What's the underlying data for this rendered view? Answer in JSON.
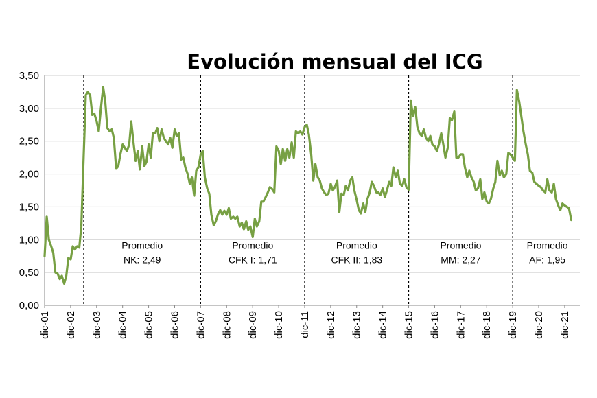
{
  "chart_data": {
    "type": "line",
    "title": "Evolución mensual del ICG",
    "xlabel": "",
    "ylabel": "",
    "ylim": [
      0,
      3.5
    ],
    "y_ticks": [
      "0,00",
      "0,50",
      "1,00",
      "1,50",
      "2,00",
      "2,50",
      "3,00",
      "3,50"
    ],
    "y_tick_values": [
      0,
      0.5,
      1,
      1.5,
      2,
      2.5,
      3,
      3.5
    ],
    "x_ticks": [
      "dic-01",
      "dic-02",
      "dic-03",
      "dic-04",
      "dic-05",
      "dic-06",
      "dic-07",
      "dic-08",
      "dic-09",
      "dic-10",
      "dic-11",
      "dic-12",
      "dic-13",
      "dic-14",
      "dic-15",
      "dic-16",
      "dic-17",
      "dic-18",
      "dic-19",
      "dic-20",
      "dic-21"
    ],
    "x_tick_values": [
      2001.917,
      2002.917,
      2003.917,
      2004.917,
      2005.917,
      2006.917,
      2007.917,
      2008.917,
      2009.917,
      2010.917,
      2011.917,
      2012.917,
      2013.917,
      2014.917,
      2015.917,
      2016.917,
      2017.917,
      2018.917,
      2019.917,
      2020.917,
      2021.917
    ],
    "xlim": [
      2001.917,
      2022.5
    ],
    "grid": true,
    "color": "#77a043",
    "dividers": [
      2003.42,
      2007.917,
      2011.917,
      2015.917,
      2019.917
    ],
    "annotations": [
      {
        "line1": "Promedio",
        "line2": "NK: 2,49",
        "x": 2005.67
      },
      {
        "line1": "Promedio",
        "line2": "CFK I: 1,71",
        "x": 2009.92
      },
      {
        "line1": "Promedio",
        "line2": "CFK II: 1,83",
        "x": 2013.92
      },
      {
        "line1": "Promedio",
        "line2": "MM: 2,27",
        "x": 2017.92
      },
      {
        "line1": "Promedio",
        "line2": "AF: 1,95",
        "x": 2021.25
      }
    ],
    "annotation_y_values": [
      0.86,
      0.64
    ],
    "series": [
      {
        "name": "ICG",
        "points": [
          [
            2001.917,
            0.75
          ],
          [
            2002.0,
            1.35
          ],
          [
            2002.08,
            1.0
          ],
          [
            2002.17,
            0.9
          ],
          [
            2002.25,
            0.8
          ],
          [
            2002.33,
            0.5
          ],
          [
            2002.42,
            0.48
          ],
          [
            2002.5,
            0.4
          ],
          [
            2002.58,
            0.45
          ],
          [
            2002.67,
            0.33
          ],
          [
            2002.75,
            0.45
          ],
          [
            2002.83,
            0.72
          ],
          [
            2002.92,
            0.7
          ],
          [
            2003.0,
            0.9
          ],
          [
            2003.08,
            0.85
          ],
          [
            2003.17,
            0.9
          ],
          [
            2003.25,
            0.88
          ],
          [
            2003.33,
            1.2
          ],
          [
            2003.42,
            2.3
          ],
          [
            2003.5,
            3.2
          ],
          [
            2003.58,
            3.25
          ],
          [
            2003.67,
            3.2
          ],
          [
            2003.75,
            2.9
          ],
          [
            2003.83,
            2.92
          ],
          [
            2003.92,
            2.8
          ],
          [
            2004.0,
            2.65
          ],
          [
            2004.08,
            3.0
          ],
          [
            2004.17,
            3.32
          ],
          [
            2004.25,
            3.1
          ],
          [
            2004.33,
            2.7
          ],
          [
            2004.42,
            2.65
          ],
          [
            2004.5,
            2.68
          ],
          [
            2004.58,
            2.55
          ],
          [
            2004.67,
            2.08
          ],
          [
            2004.75,
            2.12
          ],
          [
            2004.83,
            2.3
          ],
          [
            2004.92,
            2.45
          ],
          [
            2005.0,
            2.4
          ],
          [
            2005.08,
            2.35
          ],
          [
            2005.17,
            2.45
          ],
          [
            2005.25,
            2.8
          ],
          [
            2005.33,
            2.5
          ],
          [
            2005.42,
            2.2
          ],
          [
            2005.5,
            2.35
          ],
          [
            2005.58,
            2.07
          ],
          [
            2005.67,
            2.42
          ],
          [
            2005.75,
            2.12
          ],
          [
            2005.83,
            2.18
          ],
          [
            2005.92,
            2.45
          ],
          [
            2006.0,
            2.25
          ],
          [
            2006.08,
            2.62
          ],
          [
            2006.17,
            2.62
          ],
          [
            2006.25,
            2.7
          ],
          [
            2006.33,
            2.5
          ],
          [
            2006.42,
            2.68
          ],
          [
            2006.5,
            2.55
          ],
          [
            2006.58,
            2.5
          ],
          [
            2006.67,
            2.45
          ],
          [
            2006.75,
            2.55
          ],
          [
            2006.83,
            2.4
          ],
          [
            2006.92,
            2.68
          ],
          [
            2007.0,
            2.58
          ],
          [
            2007.08,
            2.62
          ],
          [
            2007.17,
            2.22
          ],
          [
            2007.25,
            2.25
          ],
          [
            2007.33,
            2.1
          ],
          [
            2007.42,
            2.0
          ],
          [
            2007.5,
            1.85
          ],
          [
            2007.58,
            1.95
          ],
          [
            2007.67,
            1.67
          ],
          [
            2007.75,
            2.05
          ],
          [
            2007.83,
            2.1
          ],
          [
            2007.92,
            2.3
          ],
          [
            2008.0,
            2.35
          ],
          [
            2008.08,
            1.95
          ],
          [
            2008.17,
            1.78
          ],
          [
            2008.25,
            1.7
          ],
          [
            2008.33,
            1.38
          ],
          [
            2008.42,
            1.22
          ],
          [
            2008.5,
            1.28
          ],
          [
            2008.58,
            1.38
          ],
          [
            2008.67,
            1.45
          ],
          [
            2008.75,
            1.38
          ],
          [
            2008.83,
            1.44
          ],
          [
            2008.92,
            1.38
          ],
          [
            2009.0,
            1.48
          ],
          [
            2009.08,
            1.32
          ],
          [
            2009.17,
            1.35
          ],
          [
            2009.25,
            1.32
          ],
          [
            2009.33,
            1.35
          ],
          [
            2009.42,
            1.2
          ],
          [
            2009.5,
            1.26
          ],
          [
            2009.58,
            1.16
          ],
          [
            2009.67,
            1.28
          ],
          [
            2009.75,
            1.15
          ],
          [
            2009.83,
            1.2
          ],
          [
            2009.92,
            1.04
          ],
          [
            2010.0,
            1.32
          ],
          [
            2010.08,
            1.2
          ],
          [
            2010.17,
            1.28
          ],
          [
            2010.25,
            1.58
          ],
          [
            2010.33,
            1.58
          ],
          [
            2010.42,
            1.65
          ],
          [
            2010.5,
            1.72
          ],
          [
            2010.58,
            1.8
          ],
          [
            2010.67,
            1.77
          ],
          [
            2010.75,
            1.72
          ],
          [
            2010.83,
            2.42
          ],
          [
            2010.92,
            2.35
          ],
          [
            2011.0,
            2.15
          ],
          [
            2011.08,
            2.38
          ],
          [
            2011.17,
            2.2
          ],
          [
            2011.25,
            2.38
          ],
          [
            2011.33,
            2.25
          ],
          [
            2011.42,
            2.48
          ],
          [
            2011.5,
            2.25
          ],
          [
            2011.58,
            2.65
          ],
          [
            2011.67,
            2.62
          ],
          [
            2011.75,
            2.65
          ],
          [
            2011.83,
            2.6
          ],
          [
            2011.92,
            2.72
          ],
          [
            2012.0,
            2.75
          ],
          [
            2012.08,
            2.6
          ],
          [
            2012.17,
            2.3
          ],
          [
            2012.25,
            1.9
          ],
          [
            2012.33,
            2.15
          ],
          [
            2012.42,
            1.95
          ],
          [
            2012.5,
            1.9
          ],
          [
            2012.58,
            1.78
          ],
          [
            2012.67,
            1.72
          ],
          [
            2012.75,
            1.68
          ],
          [
            2012.83,
            1.7
          ],
          [
            2012.92,
            1.85
          ],
          [
            2013.0,
            1.75
          ],
          [
            2013.08,
            1.8
          ],
          [
            2013.17,
            1.9
          ],
          [
            2013.25,
            1.42
          ],
          [
            2013.33,
            1.7
          ],
          [
            2013.42,
            1.68
          ],
          [
            2013.5,
            1.82
          ],
          [
            2013.58,
            1.75
          ],
          [
            2013.67,
            1.9
          ],
          [
            2013.75,
            1.95
          ],
          [
            2013.83,
            1.75
          ],
          [
            2013.92,
            1.6
          ],
          [
            2014.0,
            1.45
          ],
          [
            2014.08,
            1.4
          ],
          [
            2014.17,
            1.55
          ],
          [
            2014.25,
            1.42
          ],
          [
            2014.33,
            1.62
          ],
          [
            2014.42,
            1.72
          ],
          [
            2014.5,
            1.88
          ],
          [
            2014.58,
            1.82
          ],
          [
            2014.67,
            1.72
          ],
          [
            2014.75,
            1.72
          ],
          [
            2014.83,
            1.68
          ],
          [
            2014.92,
            1.78
          ],
          [
            2015.0,
            1.65
          ],
          [
            2015.08,
            1.75
          ],
          [
            2015.17,
            1.88
          ],
          [
            2015.25,
            1.82
          ],
          [
            2015.33,
            2.1
          ],
          [
            2015.42,
            1.95
          ],
          [
            2015.5,
            2.05
          ],
          [
            2015.58,
            1.85
          ],
          [
            2015.67,
            1.82
          ],
          [
            2015.75,
            1.92
          ],
          [
            2015.83,
            1.8
          ],
          [
            2015.92,
            1.76
          ],
          [
            2016.0,
            3.12
          ],
          [
            2016.08,
            2.88
          ],
          [
            2016.17,
            3.02
          ],
          [
            2016.25,
            2.72
          ],
          [
            2016.33,
            2.62
          ],
          [
            2016.42,
            2.58
          ],
          [
            2016.5,
            2.68
          ],
          [
            2016.58,
            2.55
          ],
          [
            2016.67,
            2.5
          ],
          [
            2016.75,
            2.58
          ],
          [
            2016.83,
            2.45
          ],
          [
            2016.92,
            2.42
          ],
          [
            2017.0,
            2.35
          ],
          [
            2017.08,
            2.45
          ],
          [
            2017.17,
            2.62
          ],
          [
            2017.25,
            2.45
          ],
          [
            2017.33,
            2.25
          ],
          [
            2017.42,
            2.4
          ],
          [
            2017.5,
            2.85
          ],
          [
            2017.58,
            2.82
          ],
          [
            2017.67,
            2.95
          ],
          [
            2017.75,
            2.25
          ],
          [
            2017.83,
            2.25
          ],
          [
            2017.92,
            2.3
          ],
          [
            2018.0,
            2.3
          ],
          [
            2018.08,
            2.1
          ],
          [
            2018.17,
            1.95
          ],
          [
            2018.25,
            2.05
          ],
          [
            2018.33,
            1.95
          ],
          [
            2018.42,
            1.88
          ],
          [
            2018.5,
            1.75
          ],
          [
            2018.58,
            1.78
          ],
          [
            2018.67,
            1.92
          ],
          [
            2018.75,
            1.62
          ],
          [
            2018.83,
            1.72
          ],
          [
            2018.92,
            1.58
          ],
          [
            2019.0,
            1.55
          ],
          [
            2019.08,
            1.62
          ],
          [
            2019.17,
            1.78
          ],
          [
            2019.25,
            1.88
          ],
          [
            2019.33,
            2.2
          ],
          [
            2019.42,
            1.98
          ],
          [
            2019.5,
            2.05
          ],
          [
            2019.58,
            1.95
          ],
          [
            2019.67,
            2.0
          ],
          [
            2019.75,
            2.32
          ],
          [
            2019.83,
            2.3
          ],
          [
            2019.92,
            2.25
          ],
          [
            2020.0,
            2.2
          ],
          [
            2020.08,
            3.28
          ],
          [
            2020.17,
            3.1
          ],
          [
            2020.25,
            2.88
          ],
          [
            2020.33,
            2.65
          ],
          [
            2020.42,
            2.45
          ],
          [
            2020.5,
            2.3
          ],
          [
            2020.58,
            2.05
          ],
          [
            2020.67,
            2.02
          ],
          [
            2020.75,
            1.88
          ],
          [
            2020.83,
            1.85
          ],
          [
            2020.92,
            1.82
          ],
          [
            2021.0,
            1.8
          ],
          [
            2021.08,
            1.75
          ],
          [
            2021.17,
            1.72
          ],
          [
            2021.25,
            1.92
          ],
          [
            2021.33,
            1.75
          ],
          [
            2021.42,
            1.72
          ],
          [
            2021.5,
            1.85
          ],
          [
            2021.58,
            1.62
          ],
          [
            2021.67,
            1.52
          ],
          [
            2021.75,
            1.45
          ],
          [
            2021.83,
            1.55
          ],
          [
            2021.92,
            1.52
          ],
          [
            2022.0,
            1.5
          ],
          [
            2022.08,
            1.48
          ],
          [
            2022.17,
            1.3
          ]
        ]
      }
    ]
  }
}
